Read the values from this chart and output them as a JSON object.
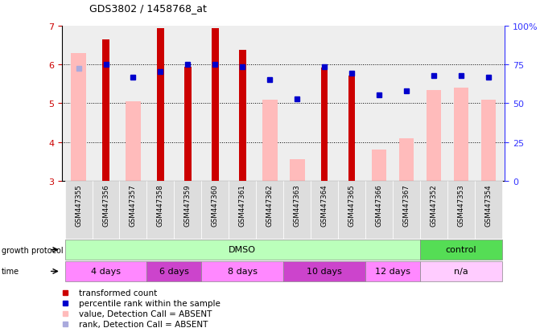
{
  "title": "GDS3802 / 1458768_at",
  "samples": [
    "GSM447355",
    "GSM447356",
    "GSM447357",
    "GSM447358",
    "GSM447359",
    "GSM447360",
    "GSM447361",
    "GSM447362",
    "GSM447363",
    "GSM447364",
    "GSM447365",
    "GSM447366",
    "GSM447367",
    "GSM447352",
    "GSM447353",
    "GSM447354"
  ],
  "red_bars": [
    null,
    6.65,
    null,
    6.95,
    5.95,
    6.95,
    6.38,
    null,
    null,
    5.92,
    5.72,
    null,
    null,
    null,
    null,
    null
  ],
  "pink_bars": [
    6.3,
    null,
    5.05,
    null,
    null,
    null,
    null,
    5.1,
    3.55,
    null,
    null,
    3.8,
    4.1,
    5.35,
    5.4,
    5.1
  ],
  "blue_squares": [
    null,
    6.0,
    5.68,
    5.82,
    6.0,
    6.0,
    5.95,
    5.62,
    5.12,
    5.95,
    5.78,
    5.22,
    5.32,
    5.72,
    5.72,
    5.68
  ],
  "light_blue_squares": [
    5.9,
    null,
    null,
    null,
    null,
    null,
    null,
    null,
    null,
    null,
    null,
    null,
    null,
    null,
    null,
    null
  ],
  "ylim": [
    3,
    7
  ],
  "yticks": [
    3,
    4,
    5,
    6,
    7
  ],
  "right_yticks": [
    0,
    25,
    50,
    75,
    100
  ],
  "right_ytick_positions": [
    3,
    4,
    5,
    6,
    7
  ],
  "right_axis_label_color": "#3333ff",
  "red_color": "#cc0000",
  "pink_color": "#ffbbbb",
  "blue_color": "#0000cc",
  "light_blue_color": "#aaaadd",
  "growth_protocol_groups": [
    {
      "label": "DMSO",
      "start": 0,
      "end": 12,
      "color": "#bbffbb"
    },
    {
      "label": "control",
      "start": 13,
      "end": 15,
      "color": "#55dd55"
    }
  ],
  "time_groups": [
    {
      "label": "4 days",
      "start": 0,
      "end": 2,
      "color": "#ff88ff"
    },
    {
      "label": "6 days",
      "start": 3,
      "end": 4,
      "color": "#dd44dd"
    },
    {
      "label": "8 days",
      "start": 5,
      "end": 7,
      "color": "#ff88ff"
    },
    {
      "label": "10 days",
      "start": 8,
      "end": 10,
      "color": "#dd44dd"
    },
    {
      "label": "12 days",
      "start": 11,
      "end": 12,
      "color": "#ff88ff"
    },
    {
      "label": "n/a",
      "start": 13,
      "end": 15,
      "color": "#ffccff"
    }
  ],
  "panel_bg": "#eeeeee",
  "fig_bg": "#ffffff"
}
